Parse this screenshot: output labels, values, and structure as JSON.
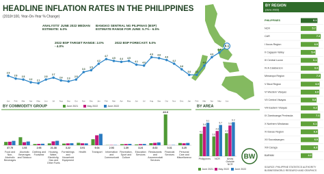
{
  "chart_data": [
    {
      "type": "line",
      "title": "HEADLINE INFLATION RATES IN THE PHILIPPINES",
      "subtitle": "(2018=100, Year-On-Year % Change)",
      "annotations": [
        "ANALYSTS' JUNE 2022 MEDIAN ESTIMATE: 6.0%",
        "BANGKO SENTRAL NG PILIPINAS (BSP) ESTIMATE RANGE FOR JUNE: 5.7% - 6.5%",
        "2022 BSP TARGET RANGE: 2.0% - 4.0%",
        "2022 BSP FORECAST: 5.0%"
      ],
      "categories": [
        "Jan",
        "Feb",
        "Mar",
        "Apr",
        "May",
        "Jun",
        "Jul",
        "Aug",
        "Sep",
        "Oct",
        "Nov",
        "Dec",
        "Jan",
        "Feb",
        "Mar",
        "Apr",
        "May",
        "Jun",
        "Jul",
        "Aug",
        "Sep",
        "Oct",
        "Nov",
        "Dec",
        "Jan",
        "Feb",
        "Mar",
        "Apr",
        "May",
        "Jun"
      ],
      "values": [
        2.9,
        2.6,
        2.5,
        2.2,
        2.1,
        2.5,
        2.7,
        2.4,
        2.3,
        2.5,
        3.3,
        3.5,
        4.2,
        4.7,
        4.5,
        4.4,
        4.5,
        4.1,
        4,
        4.9,
        4.8,
        4.6,
        4.2,
        3.6,
        3,
        3,
        4,
        4.9,
        5.4,
        6.1
      ],
      "value_labels": [
        "2.9",
        "2.6",
        "2.5",
        "2.2",
        "2.1",
        "2.5",
        "2.7",
        "2.4",
        "2.3",
        "2.5",
        "3.3",
        "3.5",
        "4.2",
        "4.7",
        "4.5",
        "4.4",
        "4.5",
        "4.1",
        "4.0",
        "4.9",
        "4.8",
        "4.6",
        "4.2",
        "3.6",
        "3.0",
        "3.0",
        "4.0",
        "4.9",
        "5.4",
        "6.1"
      ],
      "color": "#2e86c8",
      "ylim": [
        0,
        7
      ]
    },
    {
      "type": "bar",
      "title": "BY COMMODITY GROUP",
      "categories": [
        "Food and Non-Alcoholic Beverages",
        "Alcoholic Beverages and Tobacco",
        "Clothing and Footwear",
        "Housing, Water, Electricity, Gas and Other Fuels",
        "Furnishings and Household Equipment",
        "Health",
        "Transport",
        "Information and Communication",
        "Recreation, Sport and Culture",
        "Education Services",
        "Restaurants and Accommodation Services",
        "Financial Services",
        "Personal Care and Miscellaneous"
      ],
      "weights": [
        37.75,
        1.93,
        2.93,
        21.38,
        3.22,
        3.91,
        9.04,
        2.93,
        1.39,
        3.24,
        8.63,
        0.31,
        3.25
      ],
      "series": [
        {
          "name": "June 2021",
          "color": "#4f9a35",
          "values": [
            4.6,
            11.2,
            1.7,
            2.6,
            2.3,
            3.4,
            8.4,
            0.3,
            1.5,
            1.1,
            2.9,
            43,
            3.1
          ],
          "value_labels": [
            null,
            null,
            null,
            null,
            null,
            null,
            null,
            null,
            null,
            null,
            null,
            "43.0",
            null
          ]
        },
        {
          "name": "May 2022",
          "color": "#c2187a",
          "values": [
            4.9,
            4.2,
            1.9,
            5.4,
            2.6,
            2.7,
            13.9,
            0.4,
            1.7,
            1.6,
            3.3,
            0.2,
            2.7
          ]
        },
        {
          "name": "June 2022",
          "color": "#2b7bc0",
          "values": [
            6.1,
            5.2,
            2.1,
            6.2,
            2.8,
            2.6,
            15.9,
            0.4,
            1.9,
            1.8,
            3.9,
            0.4,
            3.2
          ]
        }
      ],
      "ylim": [
        0,
        45
      ]
    },
    {
      "type": "bar",
      "title": "BY AREA",
      "categories": [
        "Philippines",
        "NCR",
        "Areas Outside NCR"
      ],
      "series": [
        {
          "name": "June 2021",
          "color": "#4f9a35",
          "values": [
            4.1,
            3.6,
            4.2
          ]
        },
        {
          "name": "May 2022",
          "color": "#c2187a",
          "values": [
            5.4,
            4.6,
            5.6
          ]
        },
        {
          "name": "June 2022",
          "color": "#2b7bc0",
          "values": [
            6.1,
            5.7,
            6.2
          ]
        }
      ],
      "ylim": [
        0,
        7
      ]
    },
    {
      "type": "hbar",
      "title": "BY REGION",
      "subtitle": "(June 2022)",
      "categories": [
        "PHILIPPINES",
        "NCR",
        "CAR",
        "I Ilocos Region",
        "II Cagayan Valley",
        "III Central Luzon",
        "IV-A Calabarzon",
        "Mimaropa Region",
        "V Bicol Region",
        "VI Western Visayas",
        "VII Central Visayas",
        "VIII Eastern Visayas",
        "IX Zamboanga Peninsula",
        "X Northern Mindanao",
        "XI Davao Region",
        "XII Soccsksargen",
        "XIII Caraga",
        "BARMM"
      ],
      "values": [
        6.1,
        5.7,
        7.3,
        6.5,
        5.4,
        6.1,
        6.6,
        7.3,
        6.9,
        6.8,
        5.8,
        6.2,
        7.1,
        6.1,
        6.3,
        6.5,
        6.3,
        4.2
      ],
      "color": "#5fa23a",
      "xlim": [
        0,
        8
      ]
    }
  ],
  "footer": {
    "logo": "BW",
    "source": "SOURCE: PHILIPPINE STATISTICS AUTHORITY",
    "credit": "BUSINESSWORLD RESEARCH AND GRAPHICS"
  }
}
